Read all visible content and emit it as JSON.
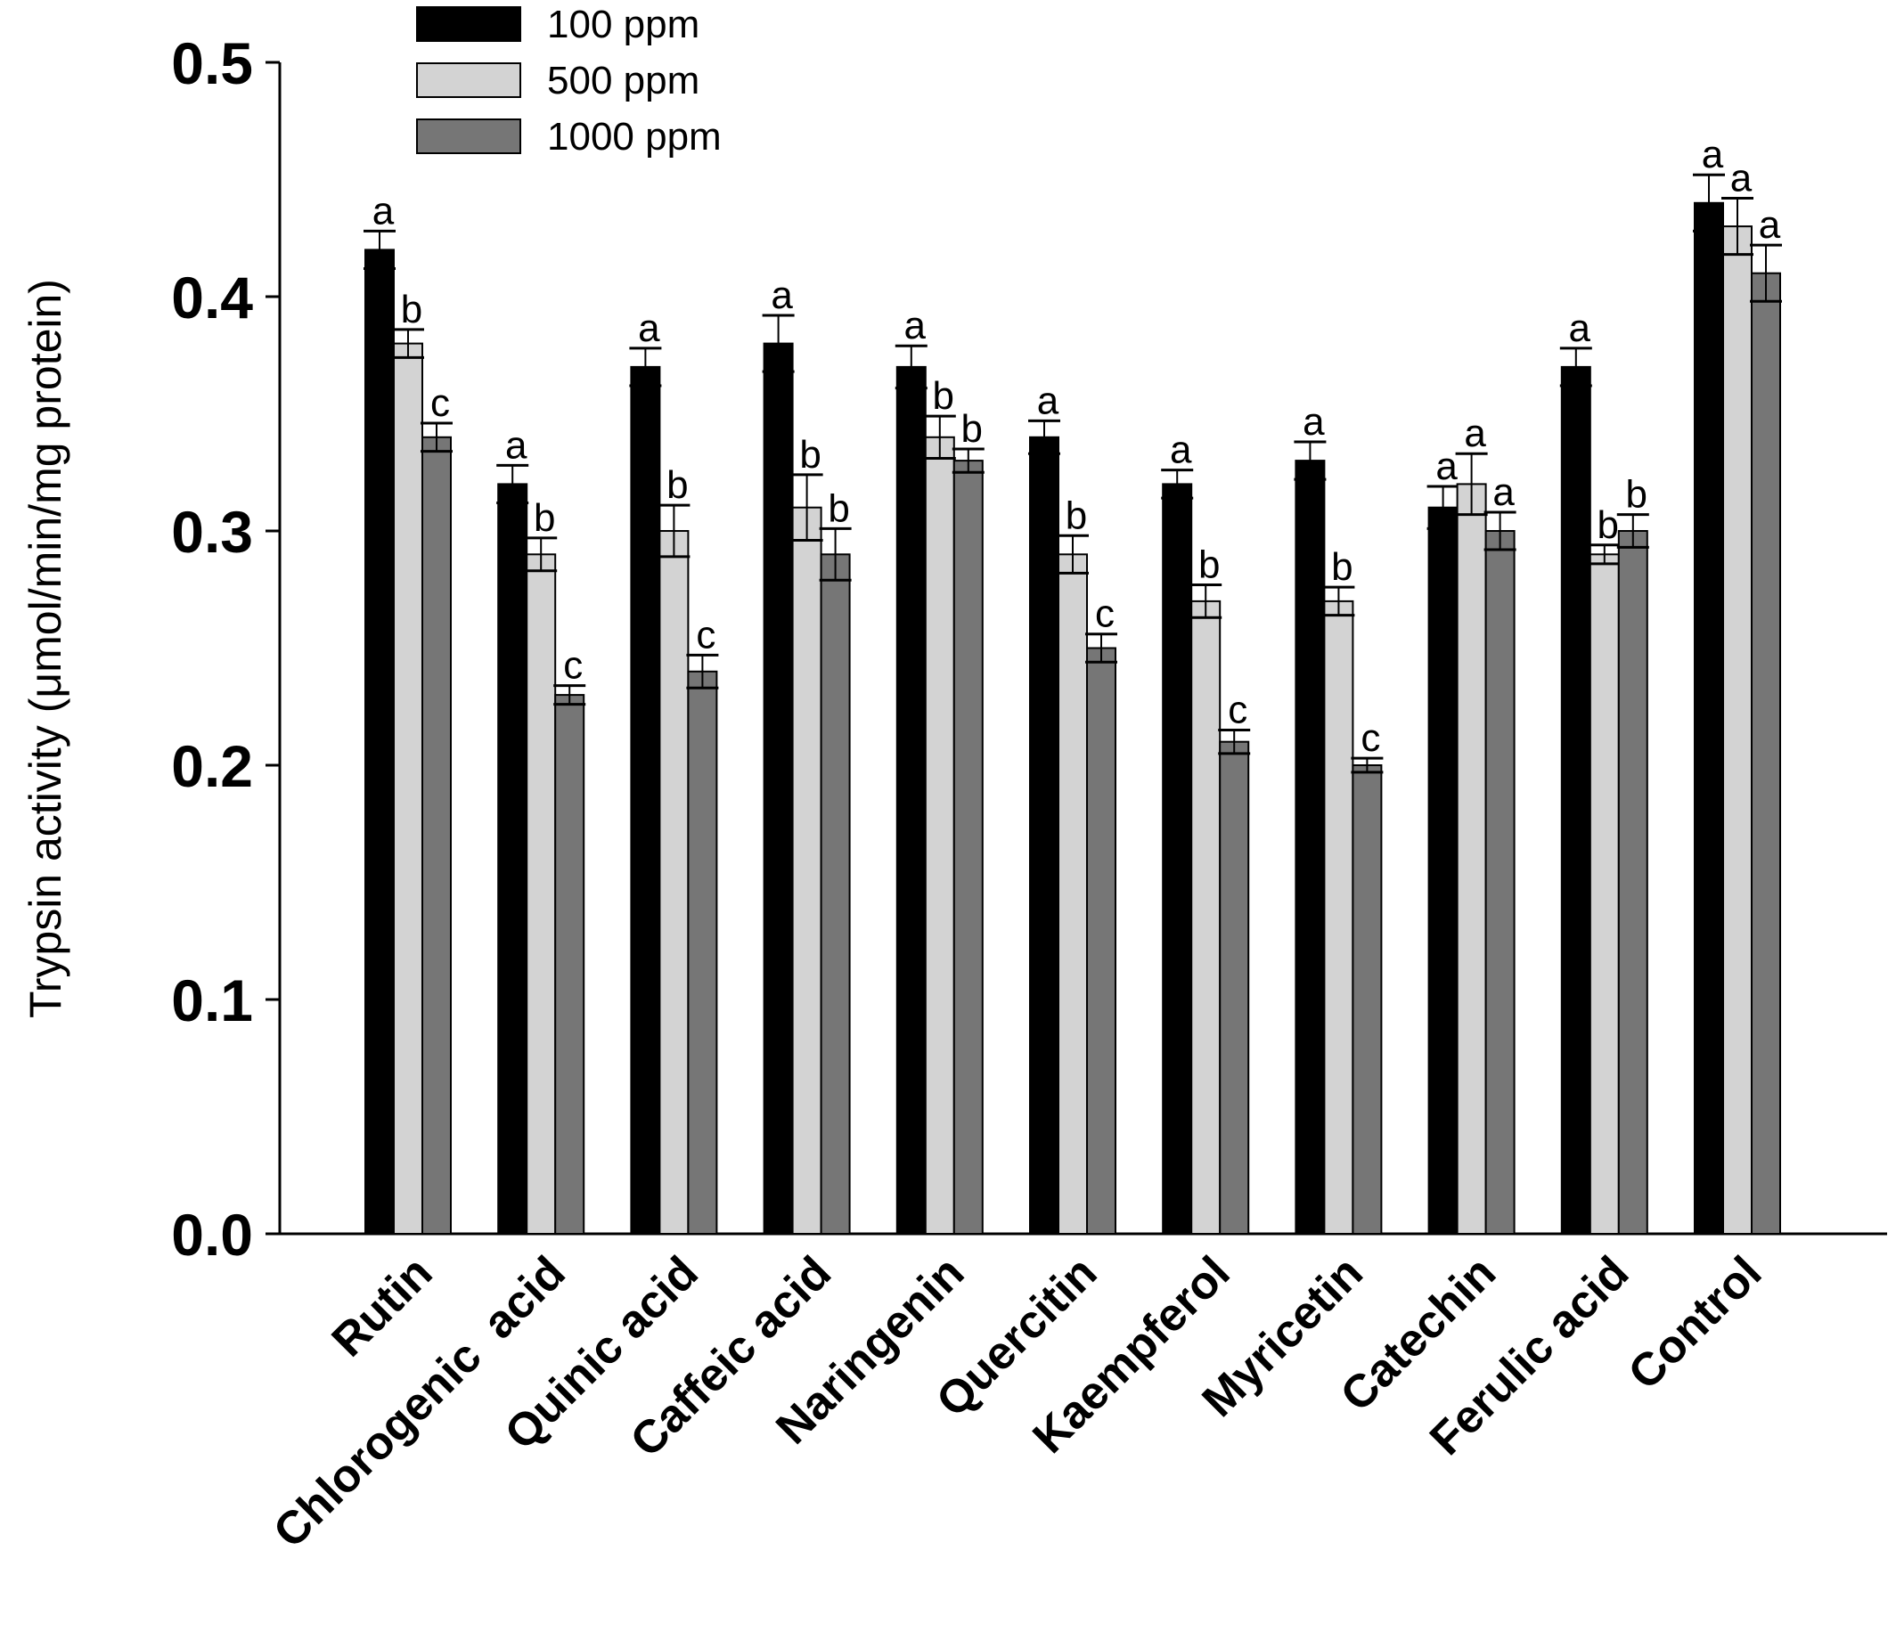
{
  "chart_data": {
    "type": "bar",
    "title": "",
    "xlabel": "",
    "ylabel": "Trypsin activity (μmol/min/mg protein)",
    "ylim": [
      0,
      0.5
    ],
    "yticks": [
      "0.0",
      "0.1",
      "0.2",
      "0.3",
      "0.4",
      "0.5"
    ],
    "legend_position": "top-left",
    "grid": false,
    "categories": [
      "Rutin",
      "Chlorogenic  acid",
      "Quinic acid",
      "Caffeic acid",
      "Naringenin",
      "Quercitin",
      "Kaempferol",
      "Myricetin",
      "Catechin",
      "Ferulic acid",
      "Control"
    ],
    "series": [
      {
        "name": "100 ppm",
        "color": "#000000",
        "values": [
          0.42,
          0.32,
          0.37,
          0.38,
          0.37,
          0.34,
          0.32,
          0.33,
          0.31,
          0.37,
          0.44
        ],
        "errors": [
          0.008,
          0.008,
          0.008,
          0.012,
          0.009,
          0.007,
          0.006,
          0.008,
          0.009,
          0.008,
          0.012
        ],
        "significance": [
          "a",
          "a",
          "a",
          "a",
          "a",
          "a",
          "a",
          "a",
          "a",
          "a",
          "a"
        ]
      },
      {
        "name": "500 ppm",
        "color": "#d3d3d3",
        "values": [
          0.38,
          0.29,
          0.3,
          0.31,
          0.34,
          0.29,
          0.27,
          0.27,
          0.32,
          0.29,
          0.43
        ],
        "errors": [
          0.006,
          0.007,
          0.011,
          0.014,
          0.009,
          0.008,
          0.007,
          0.006,
          0.013,
          0.004,
          0.012
        ],
        "significance": [
          "b",
          "b",
          "b",
          "b",
          "b",
          "b",
          "b",
          "b",
          "a",
          "b",
          "a"
        ]
      },
      {
        "name": "1000 ppm",
        "color": "#767676",
        "values": [
          0.34,
          0.23,
          0.24,
          0.29,
          0.33,
          0.25,
          0.21,
          0.2,
          0.3,
          0.3,
          0.41
        ],
        "errors": [
          0.006,
          0.004,
          0.007,
          0.011,
          0.005,
          0.006,
          0.005,
          0.003,
          0.008,
          0.007,
          0.012
        ],
        "significance": [
          "c",
          "c",
          "c",
          "b",
          "b",
          "c",
          "c",
          "c",
          "a",
          "b",
          "a"
        ]
      }
    ]
  }
}
